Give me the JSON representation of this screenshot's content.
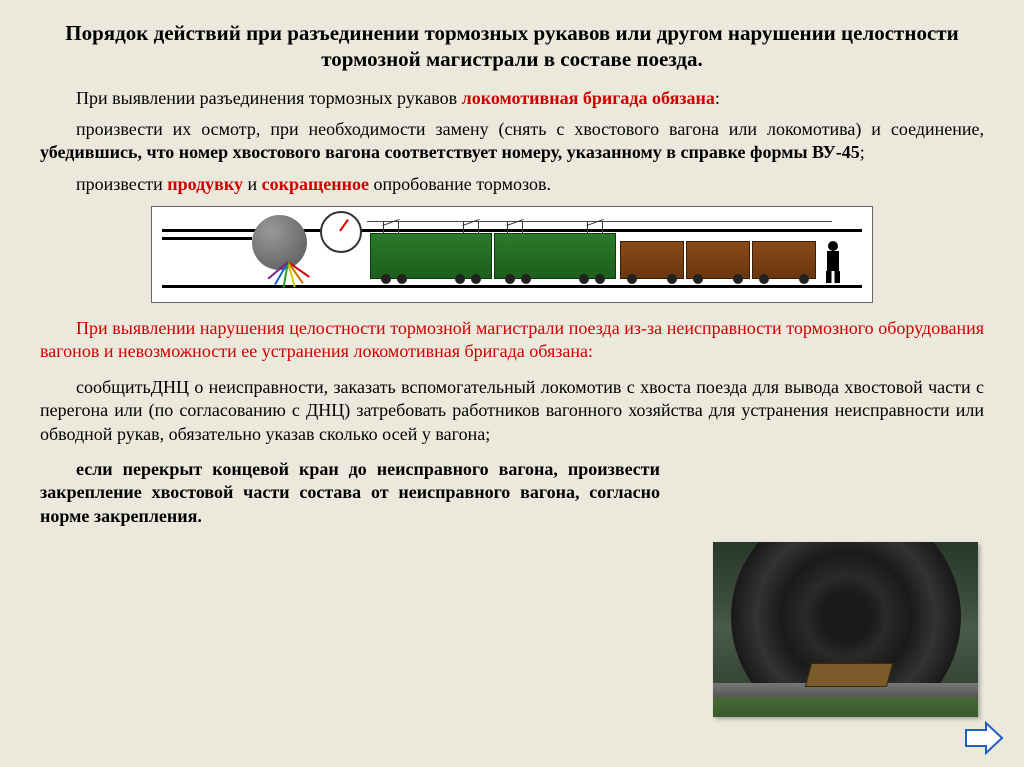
{
  "title": "Порядок действий при разъединении тормозных рукавов или другом нарушении целостности тормозной магистрали в составе поезда.",
  "p1": {
    "pre": "При выявлении разъединения тормозных рукавов ",
    "redbold": "локомотивная бригада обязана",
    "post": ":"
  },
  "p2": {
    "pre": "произвести их осмотр, при необходимости замену (снять с хвостового вагона или локомотива) и соединение, ",
    "bold": "убедившись, что номер хвостового вагона соответствует номеру, указанному в справке формы ВУ-45",
    "post": ";"
  },
  "p3": {
    "pre": "произвести ",
    "red1": "продувку",
    "mid": " и ",
    "red2": "сокращенное",
    "post": " опробование тормозов."
  },
  "p4": "При выявлении нарушения целостности тормозной магистрали поезда из-за неисправности тормозного оборудования вагонов и невозможности ее устранения локомотивная бригада обязана:",
  "p5": "сообщитьДНЦ о неисправности, заказать вспомогательный локомотив с хвоста поезда для вывода хвостовой части с перегона или (по согласованию с ДНЦ) затребовать работников вагонного хозяйства для устранения неисправности или обводной рукав, обязательно указав сколько осей у вагона;",
  "p6": "если перекрыт концевой кран до неисправного вагона, произвести закрепление хвостовой части состава от неисправного вагона, согласно норме закрепления.",
  "diagram": {
    "handle_colors": [
      "#d00000",
      "#d07000",
      "#d0d000",
      "#20a020",
      "#2060d0",
      "#802080"
    ],
    "handle_angles": [
      -55,
      -35,
      -15,
      10,
      30,
      50
    ]
  },
  "nav": {
    "alt": "next-page"
  }
}
